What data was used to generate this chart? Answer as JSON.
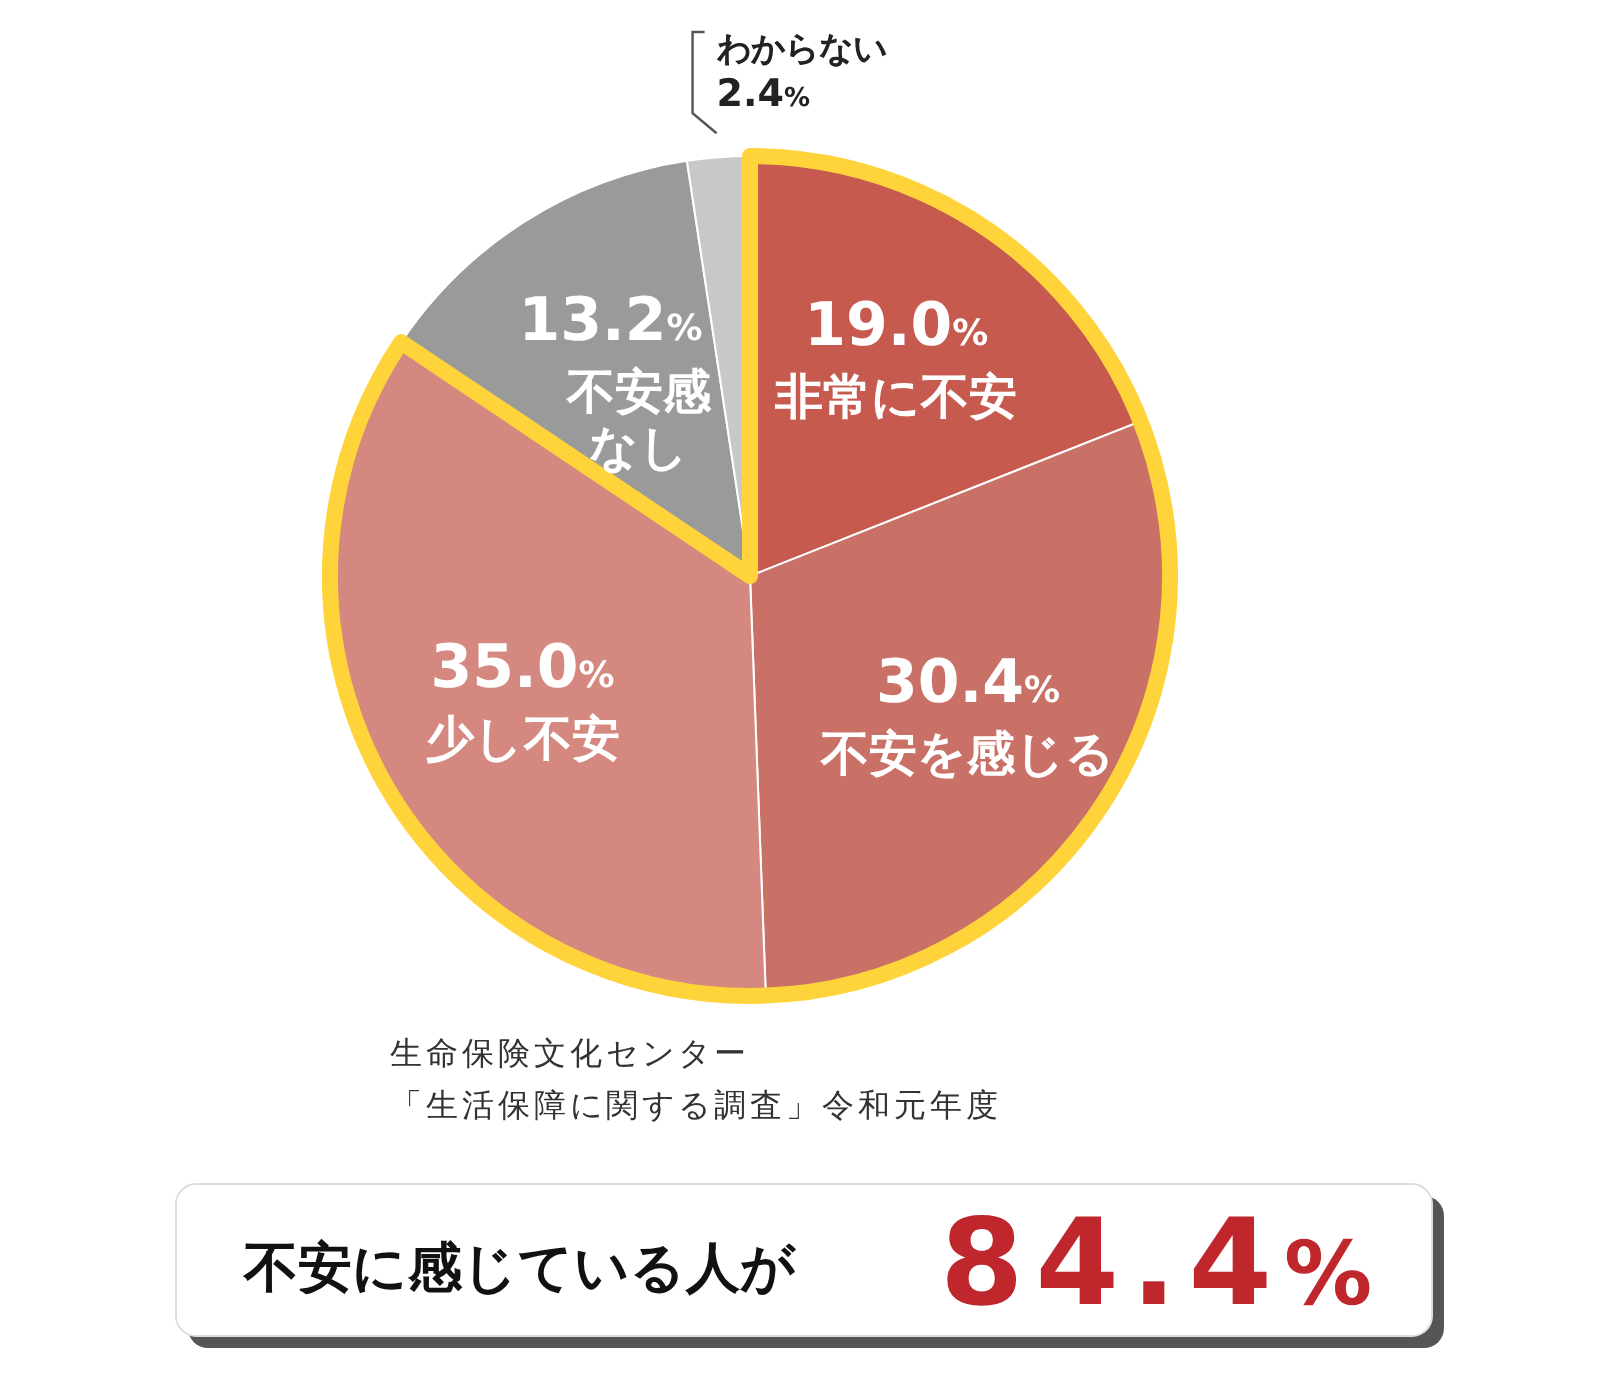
{
  "chart_data": {
    "type": "pie",
    "categories": [
      "非常に不安",
      "不安を感じる",
      "少し不安",
      "不安感なし",
      "わからない"
    ],
    "values": [
      19.0,
      30.4,
      35.0,
      13.2,
      2.4
    ],
    "colors": [
      "#c65a4e",
      "#c97067",
      "#d4887f",
      "#9a9a9a",
      "#c8c8c8"
    ],
    "value_labels": [
      "19.0%",
      "30.4%",
      "35.0%",
      "13.2%",
      "2.4%"
    ],
    "annotations": [
      "生命保険文化センター",
      "「生活保障に関する調査」令和元年度",
      "不安に感じている人が",
      "84.4%"
    ]
  }
}
